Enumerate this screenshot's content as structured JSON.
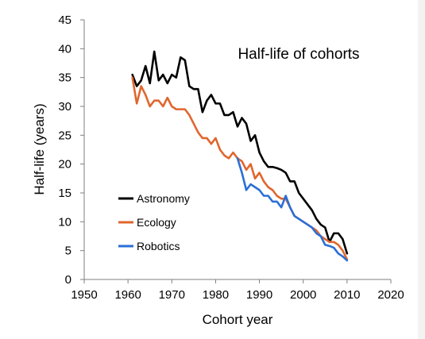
{
  "chart_data": {
    "type": "line",
    "title": "Half-life of cohorts",
    "xlabel": "Cohort year",
    "ylabel": "Half-life (years)",
    "xlim": [
      1950,
      2020
    ],
    "ylim": [
      0,
      45
    ],
    "xticks": [
      1950,
      1960,
      1970,
      1980,
      1990,
      2000,
      2010,
      2020
    ],
    "yticks": [
      0,
      5,
      10,
      15,
      20,
      25,
      30,
      35,
      40,
      45
    ],
    "grid": false,
    "legend": "lower-left",
    "series": [
      {
        "name": "Astronomy",
        "color": "#000000",
        "x": [
          1961,
          1962,
          1963,
          1964,
          1965,
          1966,
          1967,
          1968,
          1969,
          1970,
          1971,
          1972,
          1973,
          1974,
          1975,
          1976,
          1977,
          1978,
          1979,
          1980,
          1981,
          1982,
          1983,
          1984,
          1985,
          1986,
          1987,
          1988,
          1989,
          1990,
          1991,
          1992,
          1993,
          1994,
          1995,
          1996,
          1997,
          1998,
          1999,
          2000,
          2001,
          2002,
          2003,
          2004,
          2005,
          2006,
          2007,
          2008,
          2009,
          2010
        ],
        "y": [
          35.5,
          33.5,
          34.5,
          37.0,
          34.0,
          39.5,
          34.5,
          35.5,
          34.0,
          35.5,
          35.0,
          38.5,
          38.0,
          33.5,
          33.0,
          33.0,
          29.0,
          31.0,
          32.0,
          30.5,
          30.5,
          28.5,
          28.5,
          29.0,
          26.5,
          28.0,
          27.0,
          24.0,
          25.0,
          22.0,
          20.5,
          19.5,
          19.5,
          19.3,
          19.0,
          18.5,
          17.0,
          17.0,
          15.0,
          14.0,
          13.0,
          12.0,
          10.5,
          9.5,
          9.0,
          6.5,
          8.0,
          8.0,
          7.0,
          4.5
        ]
      },
      {
        "name": "Ecology",
        "color": "#e0662d",
        "x": [
          1961,
          1962,
          1963,
          1964,
          1965,
          1966,
          1967,
          1968,
          1969,
          1970,
          1971,
          1972,
          1973,
          1974,
          1975,
          1976,
          1977,
          1978,
          1979,
          1980,
          1981,
          1982,
          1983,
          1984,
          1985,
          1986,
          1987,
          1988,
          1989,
          1990,
          1991,
          1992,
          1993,
          1994,
          1995,
          1996,
          1997,
          1998,
          1999,
          2000,
          2001,
          2002,
          2003,
          2004,
          2005,
          2006,
          2007,
          2008,
          2009,
          2010
        ],
        "y": [
          35.0,
          30.5,
          33.5,
          32.0,
          30.0,
          31.0,
          31.0,
          30.0,
          31.5,
          30.0,
          29.5,
          29.5,
          29.5,
          28.5,
          27.0,
          25.5,
          24.5,
          24.5,
          23.5,
          24.5,
          22.5,
          21.5,
          21.0,
          22.0,
          21.0,
          20.5,
          19.0,
          20.0,
          17.5,
          18.5,
          17.0,
          16.0,
          15.5,
          14.5,
          14.0,
          14.0,
          12.5,
          11.0,
          10.5,
          10.0,
          9.5,
          9.0,
          8.5,
          7.5,
          7.0,
          6.5,
          6.5,
          6.0,
          5.0,
          3.5
        ]
      },
      {
        "name": "Robotics",
        "color": "#2a6fd6",
        "x": [
          1985,
          1986,
          1987,
          1988,
          1989,
          1990,
          1991,
          1992,
          1993,
          1994,
          1995,
          1996,
          1997,
          1998,
          1999,
          2000,
          2001,
          2002,
          2003,
          2004,
          2005,
          2006,
          2007,
          2008,
          2009,
          2010
        ],
        "y": [
          21.0,
          18.5,
          15.5,
          16.5,
          16.0,
          15.5,
          14.5,
          14.5,
          13.5,
          13.5,
          12.5,
          14.5,
          12.5,
          11.0,
          10.5,
          10.0,
          9.5,
          9.0,
          8.0,
          7.5,
          6.0,
          5.8,
          5.5,
          4.5,
          4.0,
          3.3
        ]
      }
    ]
  }
}
